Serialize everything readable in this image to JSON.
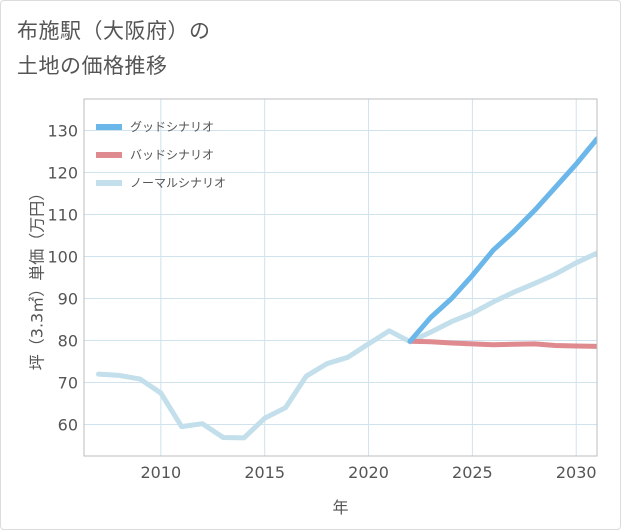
{
  "title_line1": "布施駅（大阪府）の",
  "title_line2": "土地の価格推移",
  "chart_data": {
    "type": "line",
    "xlabel": "年",
    "ylabel": "坪（3.3㎡）単価（万円）",
    "xlim": [
      2006.3,
      2031
    ],
    "ylim": [
      52.5,
      137.5
    ],
    "x_ticks": [
      2010,
      2015,
      2020,
      2025,
      2030
    ],
    "y_ticks": [
      60,
      70,
      80,
      90,
      100,
      110,
      120,
      130
    ],
    "grid": true,
    "legend_position": "top-left",
    "series": [
      {
        "name": "グッドシナリオ",
        "color": "#6cb7ea",
        "x": [
          2022,
          2023,
          2024,
          2025,
          2026,
          2027,
          2028,
          2029,
          2030,
          2031
        ],
        "y": [
          79.8,
          85.5,
          90.0,
          95.5,
          101.5,
          106.0,
          111.0,
          116.5,
          122.0,
          128.0
        ]
      },
      {
        "name": "バッドシナリオ",
        "color": "#de8a8f",
        "x": [
          2022,
          2023,
          2024,
          2025,
          2026,
          2027,
          2028,
          2029,
          2030,
          2031
        ],
        "y": [
          79.8,
          79.7,
          79.4,
          79.2,
          79.0,
          79.1,
          79.2,
          78.8,
          78.7,
          78.6
        ]
      },
      {
        "name": "ノーマルシナリオ",
        "color": "#c2dfeb",
        "x": [
          2007,
          2008,
          2009,
          2010,
          2011,
          2012,
          2013,
          2014,
          2015,
          2016,
          2017,
          2018,
          2019,
          2020,
          2021,
          2022,
          2023,
          2024,
          2025,
          2026,
          2027,
          2028,
          2029,
          2030,
          2031
        ],
        "y": [
          72.0,
          71.7,
          70.8,
          67.5,
          59.5,
          60.2,
          56.9,
          56.8,
          61.5,
          64.0,
          71.5,
          74.5,
          76.0,
          79.2,
          82.3,
          79.7,
          82.0,
          84.5,
          86.5,
          89.2,
          91.5,
          93.6,
          95.8,
          98.5,
          100.8
        ]
      }
    ]
  }
}
